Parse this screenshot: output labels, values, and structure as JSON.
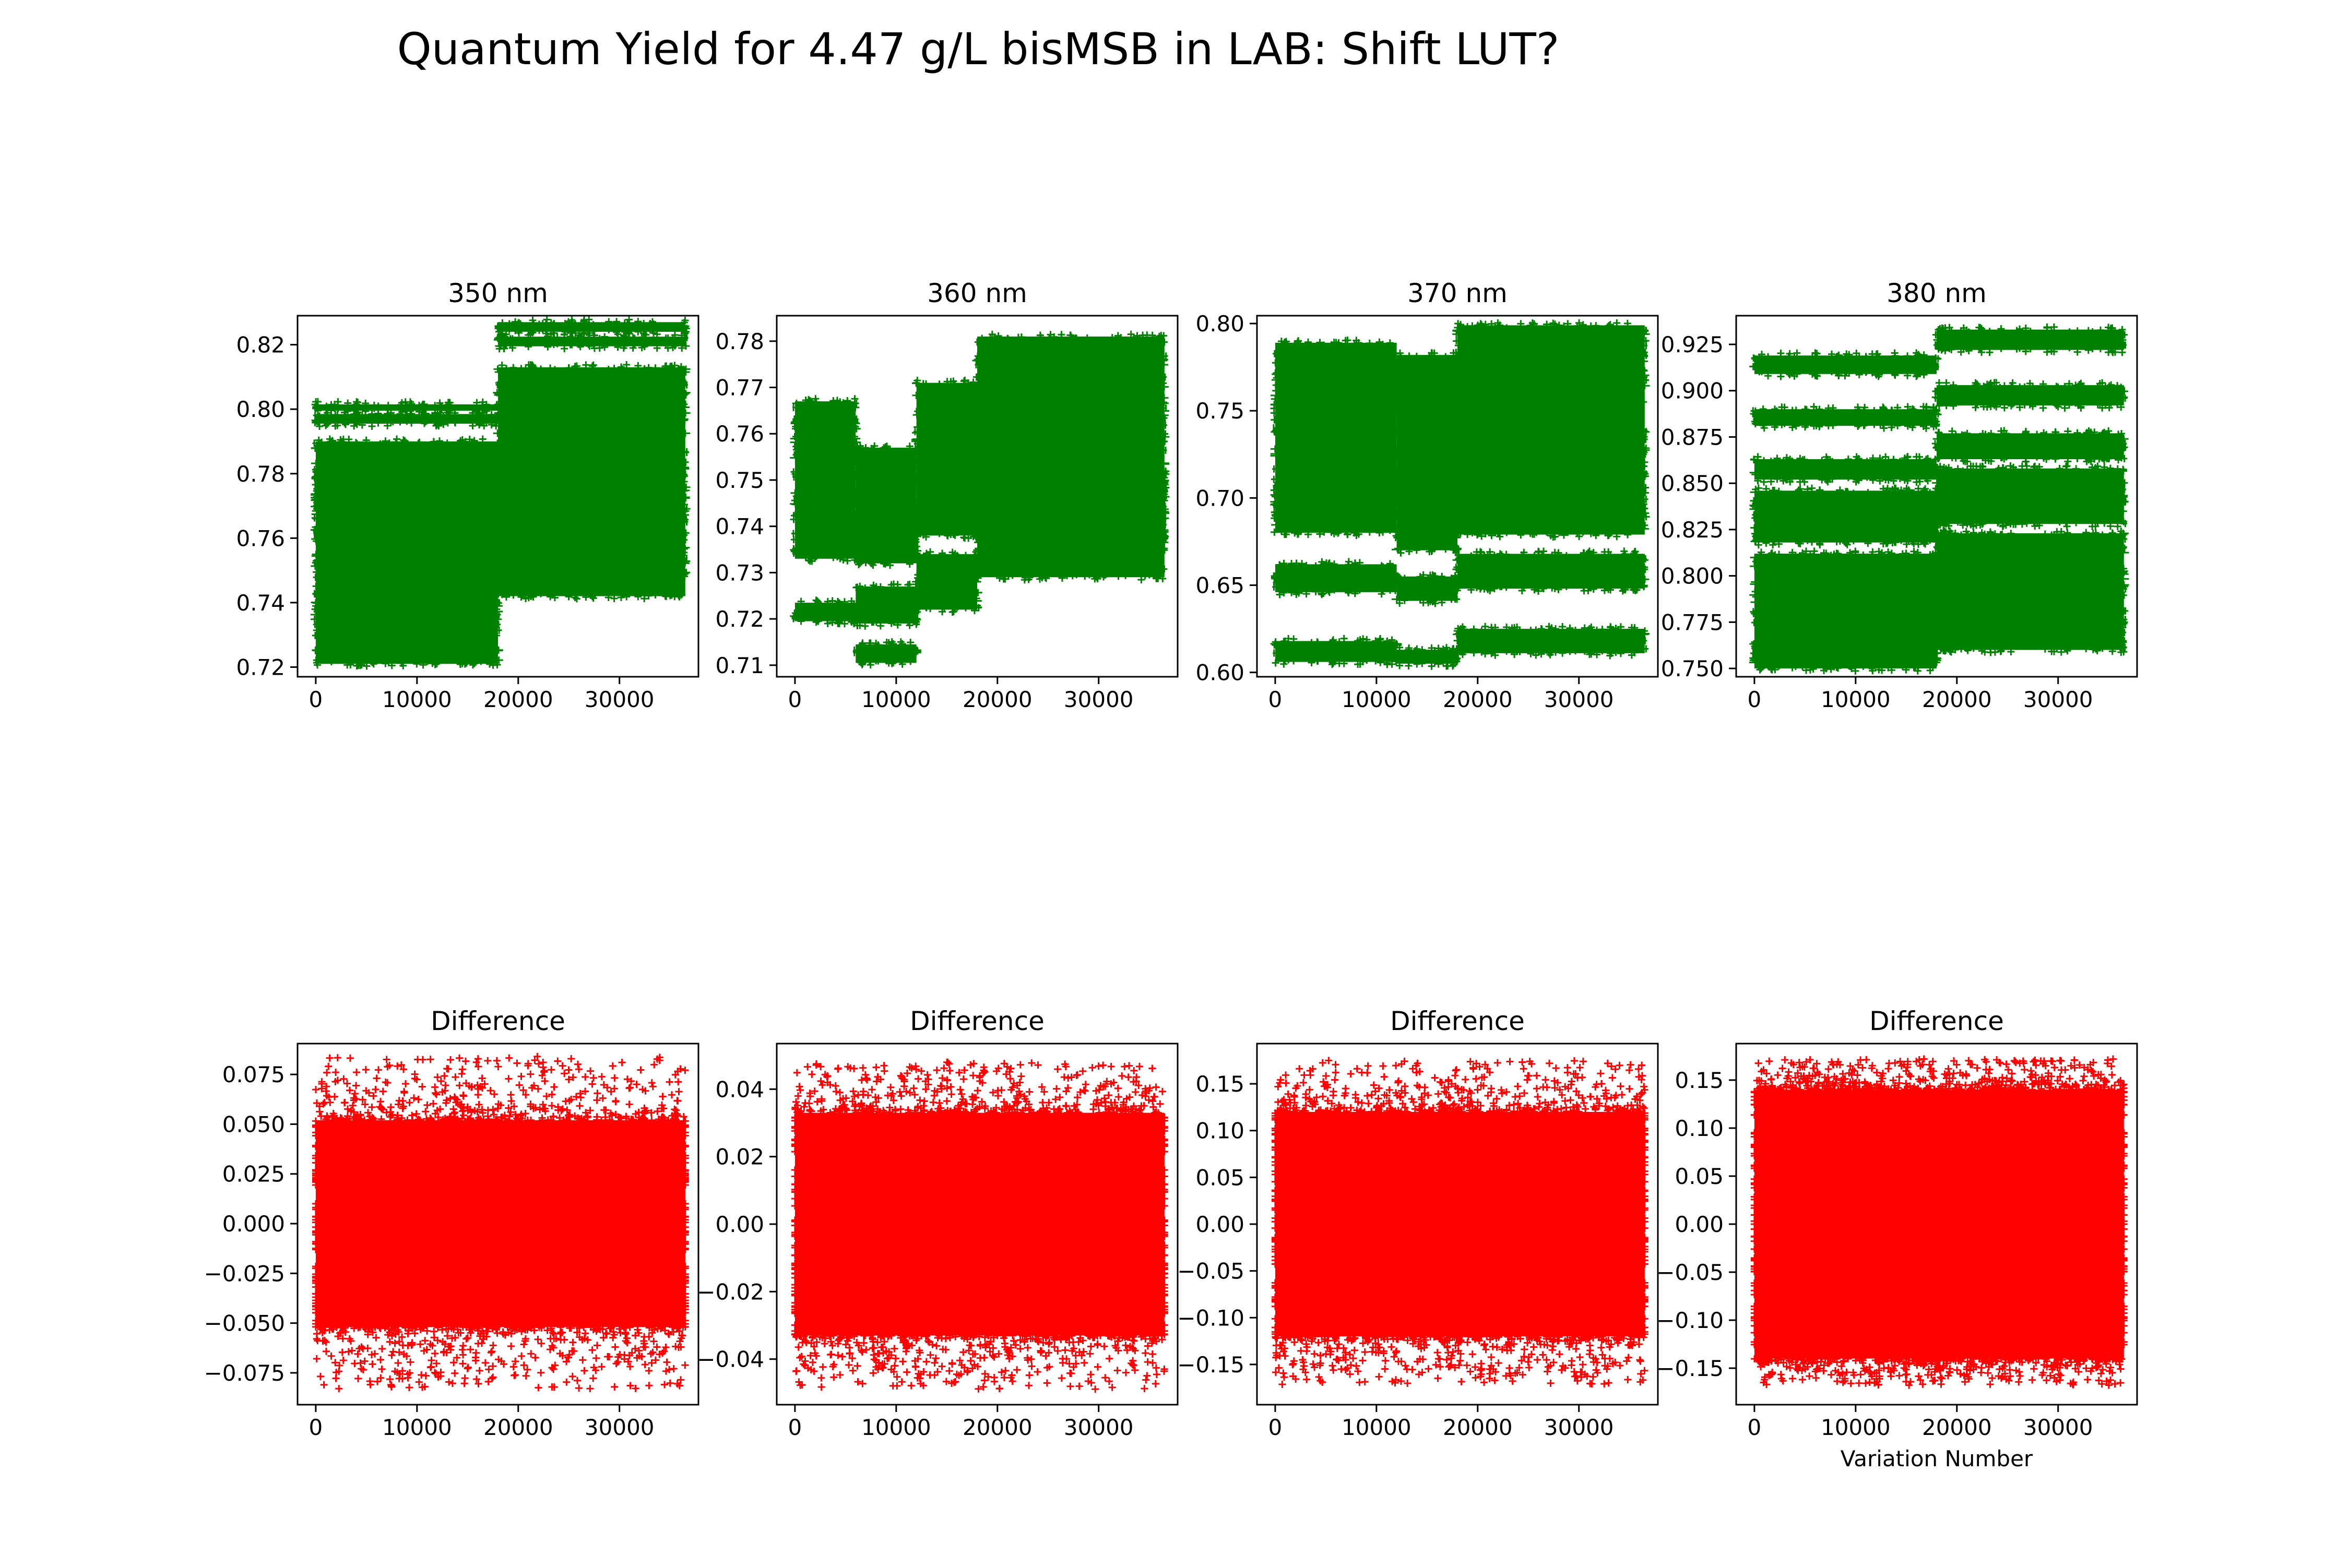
{
  "figure": {
    "title": "Quantum Yield for 4.47 g/L bisMSB in LAB: Shift LUT?"
  },
  "colors": {
    "top_series": "#008000",
    "bottom_series": "#ff0000",
    "marker": "+"
  },
  "chart_data": [
    {
      "type": "scatter",
      "title": "350 nm",
      "xlabel": "",
      "ylabel": "",
      "xlim": [
        -1800,
        37800
      ],
      "ylim": [
        0.717,
        0.829
      ],
      "xticks": [
        0,
        10000,
        20000,
        30000
      ],
      "yticks": [
        0.72,
        0.74,
        0.76,
        0.78,
        0.8,
        0.82
      ],
      "ytick_labels": [
        "0.72",
        "0.74",
        "0.76",
        "0.78",
        "0.80",
        "0.82"
      ],
      "grid": false,
      "bands": [
        {
          "x": [
            0,
            18000
          ],
          "y": [
            0.721,
            0.781
          ]
        },
        {
          "x": [
            0,
            18000
          ],
          "y": [
            0.76,
            0.79
          ]
        },
        {
          "x": [
            0,
            18000
          ],
          "y": [
            0.7955,
            0.7985
          ]
        },
        {
          "x": [
            0,
            18000
          ],
          "y": [
            0.7995,
            0.8015
          ]
        },
        {
          "x": [
            18000,
            36500
          ],
          "y": [
            0.742,
            0.813
          ]
        },
        {
          "x": [
            18000,
            36500
          ],
          "y": [
            0.8195,
            0.8225
          ]
        },
        {
          "x": [
            18000,
            36500
          ],
          "y": [
            0.824,
            0.827
          ]
        }
      ]
    },
    {
      "type": "scatter",
      "title": "360 nm",
      "xlabel": "",
      "ylabel": "",
      "xlim": [
        -1800,
        37800
      ],
      "ylim": [
        0.7075,
        0.7855
      ],
      "xticks": [
        0,
        10000,
        20000,
        30000
      ],
      "yticks": [
        0.71,
        0.72,
        0.73,
        0.74,
        0.75,
        0.76,
        0.77,
        0.78
      ],
      "ytick_labels": [
        "0.71",
        "0.72",
        "0.73",
        "0.74",
        "0.75",
        "0.76",
        "0.77",
        "0.78"
      ],
      "grid": false,
      "bands": [
        {
          "x": [
            0,
            6000
          ],
          "y": [
            0.733,
            0.767
          ]
        },
        {
          "x": [
            0,
            6000
          ],
          "y": [
            0.7195,
            0.7235
          ]
        },
        {
          "x": [
            6000,
            12000
          ],
          "y": [
            0.732,
            0.757
          ]
        },
        {
          "x": [
            6000,
            12000
          ],
          "y": [
            0.719,
            0.727
          ]
        },
        {
          "x": [
            6000,
            12000
          ],
          "y": [
            0.7105,
            0.7145
          ]
        },
        {
          "x": [
            12000,
            18000
          ],
          "y": [
            0.738,
            0.771
          ]
        },
        {
          "x": [
            12000,
            18000
          ],
          "y": [
            0.722,
            0.734
          ]
        },
        {
          "x": [
            18000,
            36500
          ],
          "y": [
            0.742,
            0.781
          ]
        },
        {
          "x": [
            18000,
            36500
          ],
          "y": [
            0.729,
            0.752
          ]
        }
      ]
    },
    {
      "type": "scatter",
      "title": "370 nm",
      "xlabel": "",
      "ylabel": "",
      "xlim": [
        -1800,
        37800
      ],
      "ylim": [
        0.5975,
        0.8045
      ],
      "xticks": [
        0,
        10000,
        20000,
        30000
      ],
      "yticks": [
        0.6,
        0.65,
        0.7,
        0.75,
        0.8
      ],
      "ytick_labels": [
        "0.60",
        "0.65",
        "0.70",
        "0.75",
        "0.80"
      ],
      "grid": false,
      "bands": [
        {
          "x": [
            0,
            12000
          ],
          "y": [
            0.68,
            0.789
          ]
        },
        {
          "x": [
            0,
            12000
          ],
          "y": [
            0.646,
            0.662
          ]
        },
        {
          "x": [
            0,
            12000
          ],
          "y": [
            0.606,
            0.618
          ]
        },
        {
          "x": [
            12000,
            18000
          ],
          "y": [
            0.67,
            0.782
          ]
        },
        {
          "x": [
            12000,
            18000
          ],
          "y": [
            0.641,
            0.655
          ]
        },
        {
          "x": [
            12000,
            18000
          ],
          "y": [
            0.605,
            0.613
          ]
        },
        {
          "x": [
            18000,
            36500
          ],
          "y": [
            0.679,
            0.799
          ]
        },
        {
          "x": [
            18000,
            36500
          ],
          "y": [
            0.648,
            0.668
          ]
        },
        {
          "x": [
            18000,
            36500
          ],
          "y": [
            0.611,
            0.625
          ]
        }
      ]
    },
    {
      "type": "scatter",
      "title": "380 nm",
      "xlabel": "",
      "ylabel": "",
      "xlim": [
        -1800,
        37800
      ],
      "ylim": [
        0.7455,
        0.9405
      ],
      "xticks": [
        0,
        10000,
        20000,
        30000
      ],
      "yticks": [
        0.75,
        0.775,
        0.8,
        0.825,
        0.85,
        0.875,
        0.9,
        0.925
      ],
      "ytick_labels": [
        "0.750",
        "0.775",
        "0.800",
        "0.825",
        "0.850",
        "0.875",
        "0.900",
        "0.925"
      ],
      "grid": false,
      "bands": [
        {
          "x": [
            0,
            18000
          ],
          "y": [
            0.75,
            0.812
          ]
        },
        {
          "x": [
            0,
            18000
          ],
          "y": [
            0.818,
            0.846
          ]
        },
        {
          "x": [
            0,
            18000
          ],
          "y": [
            0.852,
            0.863
          ]
        },
        {
          "x": [
            0,
            18000
          ],
          "y": [
            0.881,
            0.89
          ]
        },
        {
          "x": [
            0,
            18000
          ],
          "y": [
            0.909,
            0.919
          ]
        },
        {
          "x": [
            18000,
            36500
          ],
          "y": [
            0.76,
            0.823
          ]
        },
        {
          "x": [
            18000,
            36500
          ],
          "y": [
            0.828,
            0.858
          ]
        },
        {
          "x": [
            18000,
            36500
          ],
          "y": [
            0.863,
            0.877
          ]
        },
        {
          "x": [
            18000,
            36500
          ],
          "y": [
            0.892,
            0.903
          ]
        },
        {
          "x": [
            18000,
            36500
          ],
          "y": [
            0.922,
            0.933
          ]
        }
      ]
    },
    {
      "type": "scatter",
      "title": "Difference",
      "xlabel": "",
      "ylabel": "",
      "xlim": [
        -1800,
        37800
      ],
      "ylim": [
        -0.091,
        0.0905
      ],
      "xticks": [
        0,
        10000,
        20000,
        30000
      ],
      "yticks": [
        -0.075,
        -0.05,
        -0.025,
        0.0,
        0.025,
        0.05,
        0.075
      ],
      "ytick_labels": [
        "−0.075",
        "−0.050",
        "−0.025",
        "0.000",
        "0.025",
        "0.050",
        "0.075"
      ],
      "grid": false,
      "core": [
        -0.052,
        0.052
      ],
      "spread": [
        -0.083,
        0.084
      ]
    },
    {
      "type": "scatter",
      "title": "Difference",
      "xlabel": "",
      "ylabel": "",
      "xlim": [
        -1800,
        37800
      ],
      "ylim": [
        -0.0535,
        0.0535
      ],
      "xticks": [
        0,
        10000,
        20000,
        30000
      ],
      "yticks": [
        -0.04,
        -0.02,
        0.0,
        0.02,
        0.04
      ],
      "ytick_labels": [
        "−0.04",
        "−0.02",
        "0.00",
        "0.02",
        "0.04"
      ],
      "grid": false,
      "core": [
        -0.033,
        0.033
      ],
      "spread": [
        -0.049,
        0.048
      ]
    },
    {
      "type": "scatter",
      "title": "Difference",
      "xlabel": "",
      "ylabel": "",
      "xlim": [
        -1800,
        37800
      ],
      "ylim": [
        -0.193,
        0.193
      ],
      "xticks": [
        0,
        10000,
        20000,
        30000
      ],
      "yticks": [
        -0.15,
        -0.1,
        -0.05,
        0.0,
        0.05,
        0.1,
        0.15
      ],
      "ytick_labels": [
        "−0.15",
        "−0.10",
        "−0.05",
        "0.00",
        "0.05",
        "0.10",
        "0.15"
      ],
      "grid": false,
      "core": [
        -0.12,
        0.12
      ],
      "spread": [
        -0.172,
        0.175
      ]
    },
    {
      "type": "scatter",
      "title": "Difference",
      "xlabel": "Variation Number",
      "ylabel": "",
      "xlim": [
        -1800,
        37800
      ],
      "ylim": [
        -0.188,
        0.188
      ],
      "xticks": [
        0,
        10000,
        20000,
        30000
      ],
      "yticks": [
        -0.15,
        -0.1,
        -0.05,
        0.0,
        0.05,
        0.1,
        0.15
      ],
      "ytick_labels": [
        "−0.15",
        "−0.10",
        "−0.05",
        "0.00",
        "0.05",
        "0.10",
        "0.15"
      ],
      "grid": false,
      "core": [
        -0.14,
        0.14
      ],
      "spread": [
        -0.168,
        0.172
      ]
    }
  ]
}
